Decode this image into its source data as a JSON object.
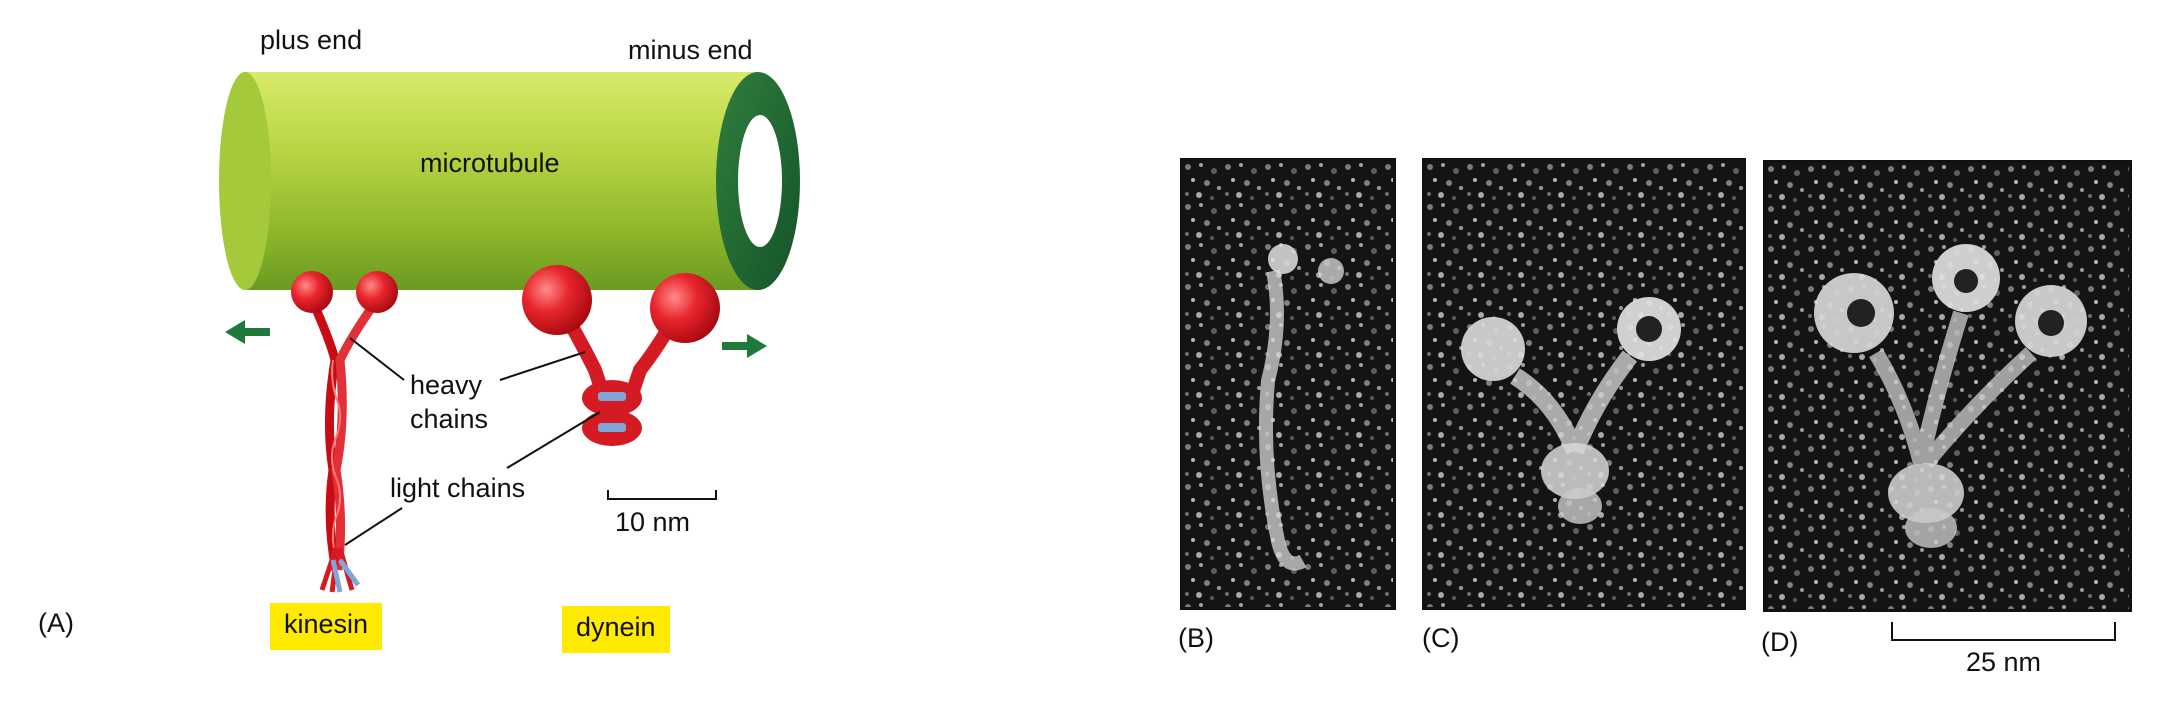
{
  "diagram": {
    "labels": {
      "plus_end": "plus end",
      "minus_end": "minus end",
      "microtubule": "microtubule",
      "heavy_chains": "heavy\nchains",
      "light_chains": "light chains",
      "scale_a": "10 nm",
      "kinesin": "kinesin",
      "dynein": "dynein",
      "panel_a": "(A)"
    },
    "micrographs": {
      "panel_b": "(B)",
      "panel_c": "(C)",
      "panel_d": "(D)",
      "scale": "25 nm"
    },
    "colors": {
      "microtubule": "#9cc430",
      "motor": "#e0141e",
      "arrow": "#1d7a3a",
      "highlight": "#ffea00",
      "light_chain": "#7fa6d8"
    }
  }
}
